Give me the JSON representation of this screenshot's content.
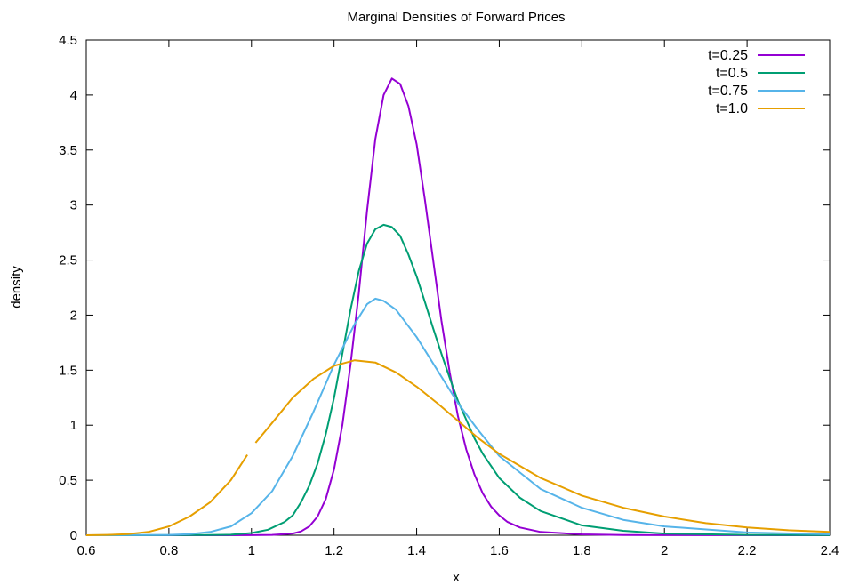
{
  "chart_data": {
    "type": "line",
    "title": "Marginal Densities of Forward Prices",
    "xlabel": "x",
    "ylabel": "density",
    "xlim": [
      0.6,
      2.4
    ],
    "ylim": [
      0,
      4.5
    ],
    "x_ticks": [
      "0.6",
      "0.8",
      "1",
      "1.2",
      "1.4",
      "1.6",
      "1.8",
      "2",
      "2.2",
      "2.4"
    ],
    "y_ticks": [
      "0",
      "0.5",
      "1",
      "1.5",
      "2",
      "2.5",
      "3",
      "3.5",
      "4",
      "4.5"
    ],
    "grid": false,
    "legend_position": "top-right",
    "series": [
      {
        "name": "t=0.25",
        "color": "#9400d3",
        "points": [
          [
            0.6,
            0
          ],
          [
            0.9,
            0
          ],
          [
            1.0,
            0.001
          ],
          [
            1.05,
            0.003
          ],
          [
            1.1,
            0.015
          ],
          [
            1.12,
            0.035
          ],
          [
            1.14,
            0.08
          ],
          [
            1.16,
            0.17
          ],
          [
            1.18,
            0.33
          ],
          [
            1.2,
            0.6
          ],
          [
            1.22,
            1.0
          ],
          [
            1.24,
            1.55
          ],
          [
            1.26,
            2.2
          ],
          [
            1.28,
            2.95
          ],
          [
            1.3,
            3.6
          ],
          [
            1.32,
            4.0
          ],
          [
            1.34,
            4.15
          ],
          [
            1.36,
            4.1
          ],
          [
            1.38,
            3.9
          ],
          [
            1.4,
            3.55
          ],
          [
            1.42,
            3.05
          ],
          [
            1.44,
            2.5
          ],
          [
            1.46,
            1.95
          ],
          [
            1.48,
            1.48
          ],
          [
            1.5,
            1.08
          ],
          [
            1.52,
            0.78
          ],
          [
            1.54,
            0.55
          ],
          [
            1.56,
            0.38
          ],
          [
            1.58,
            0.26
          ],
          [
            1.6,
            0.18
          ],
          [
            1.62,
            0.12
          ],
          [
            1.65,
            0.07
          ],
          [
            1.7,
            0.03
          ],
          [
            1.8,
            0.008
          ],
          [
            1.9,
            0.002
          ],
          [
            2.0,
            0.0005
          ],
          [
            2.4,
            0
          ]
        ]
      },
      {
        "name": "t=0.5",
        "color": "#009e73",
        "points": [
          [
            0.6,
            0
          ],
          [
            0.9,
            0.002
          ],
          [
            0.95,
            0.005
          ],
          [
            1.0,
            0.02
          ],
          [
            1.04,
            0.05
          ],
          [
            1.08,
            0.12
          ],
          [
            1.1,
            0.18
          ],
          [
            1.12,
            0.3
          ],
          [
            1.14,
            0.45
          ],
          [
            1.16,
            0.65
          ],
          [
            1.18,
            0.92
          ],
          [
            1.2,
            1.25
          ],
          [
            1.22,
            1.65
          ],
          [
            1.24,
            2.05
          ],
          [
            1.26,
            2.4
          ],
          [
            1.28,
            2.65
          ],
          [
            1.3,
            2.78
          ],
          [
            1.32,
            2.82
          ],
          [
            1.34,
            2.8
          ],
          [
            1.36,
            2.72
          ],
          [
            1.38,
            2.55
          ],
          [
            1.4,
            2.35
          ],
          [
            1.42,
            2.12
          ],
          [
            1.44,
            1.88
          ],
          [
            1.46,
            1.65
          ],
          [
            1.48,
            1.43
          ],
          [
            1.5,
            1.22
          ],
          [
            1.52,
            1.05
          ],
          [
            1.54,
            0.88
          ],
          [
            1.56,
            0.74
          ],
          [
            1.6,
            0.52
          ],
          [
            1.65,
            0.34
          ],
          [
            1.7,
            0.22
          ],
          [
            1.8,
            0.09
          ],
          [
            1.9,
            0.04
          ],
          [
            2.0,
            0.015
          ],
          [
            2.2,
            0.003
          ],
          [
            2.4,
            0.001
          ]
        ]
      },
      {
        "name": "t=0.75",
        "color": "#56b4e9",
        "points": [
          [
            0.6,
            0
          ],
          [
            0.8,
            0.003
          ],
          [
            0.85,
            0.01
          ],
          [
            0.9,
            0.03
          ],
          [
            0.95,
            0.08
          ],
          [
            1.0,
            0.2
          ],
          [
            1.05,
            0.4
          ],
          [
            1.1,
            0.72
          ],
          [
            1.15,
            1.12
          ],
          [
            1.2,
            1.55
          ],
          [
            1.25,
            1.92
          ],
          [
            1.28,
            2.1
          ],
          [
            1.3,
            2.15
          ],
          [
            1.32,
            2.13
          ],
          [
            1.35,
            2.05
          ],
          [
            1.4,
            1.8
          ],
          [
            1.45,
            1.5
          ],
          [
            1.5,
            1.2
          ],
          [
            1.55,
            0.95
          ],
          [
            1.6,
            0.72
          ],
          [
            1.7,
            0.42
          ],
          [
            1.8,
            0.25
          ],
          [
            1.9,
            0.14
          ],
          [
            2.0,
            0.08
          ],
          [
            2.2,
            0.025
          ],
          [
            2.4,
            0.008
          ]
        ]
      },
      {
        "name": "t=1.0",
        "color": "#e69f00",
        "points": [
          [
            0.6,
            0
          ],
          [
            0.65,
            0.003
          ],
          [
            0.7,
            0.01
          ],
          [
            0.75,
            0.03
          ],
          [
            0.8,
            0.08
          ],
          [
            0.85,
            0.17
          ],
          [
            0.9,
            0.3
          ],
          [
            0.95,
            0.5
          ],
          [
            0.99,
            0.73
          ],
          [
            null,
            null
          ],
          [
            1.01,
            0.84
          ],
          [
            1.05,
            1.02
          ],
          [
            1.1,
            1.25
          ],
          [
            1.15,
            1.42
          ],
          [
            1.2,
            1.54
          ],
          [
            1.25,
            1.59
          ],
          [
            1.3,
            1.57
          ],
          [
            1.35,
            1.48
          ],
          [
            1.4,
            1.35
          ],
          [
            1.45,
            1.2
          ],
          [
            1.5,
            1.04
          ],
          [
            1.55,
            0.88
          ],
          [
            1.6,
            0.74
          ],
          [
            1.7,
            0.52
          ],
          [
            1.8,
            0.36
          ],
          [
            1.9,
            0.25
          ],
          [
            2.0,
            0.17
          ],
          [
            2.1,
            0.11
          ],
          [
            2.2,
            0.07
          ],
          [
            2.3,
            0.045
          ],
          [
            2.4,
            0.03
          ]
        ]
      }
    ]
  }
}
